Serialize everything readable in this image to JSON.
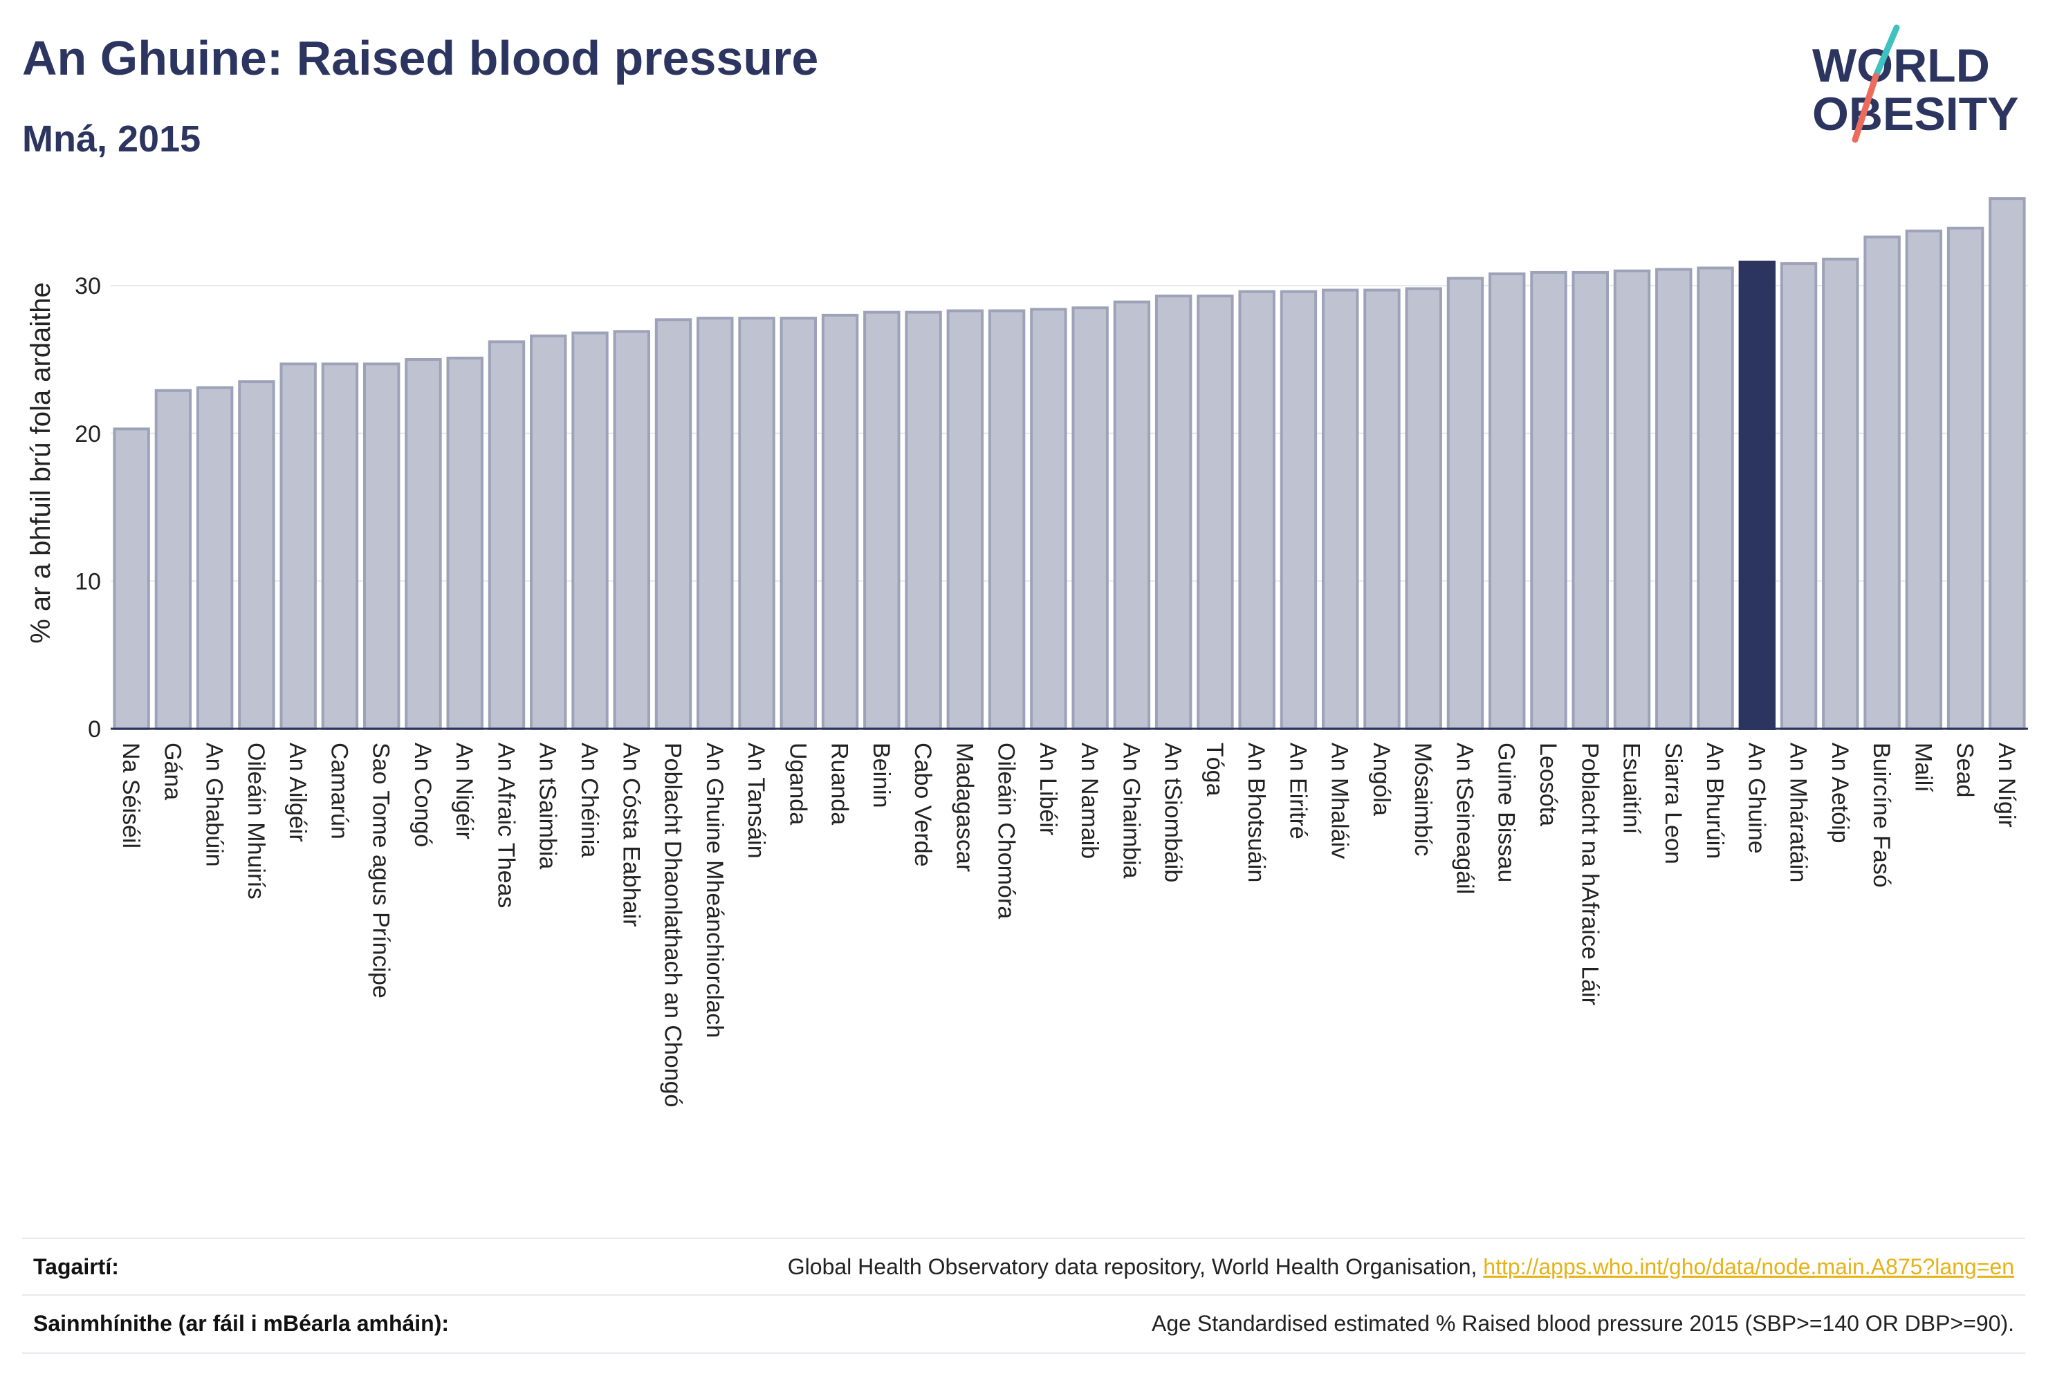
{
  "header": {
    "title": "An Ghuine: Raised blood pressure",
    "subtitle": "Mná, 2015"
  },
  "logo": {
    "line1": "WORLD",
    "line2": "OBESITY",
    "icon": "world-obesity-logo"
  },
  "colors": {
    "bar": "#bfc3d1",
    "bar_stroke": "#9da2b8",
    "highlight": "#2c3560",
    "text": "#2c3560",
    "link": "#e6b21a",
    "grid": "#e6e6ea"
  },
  "chart_data": {
    "type": "bar",
    "ylabel": "% ar a bhfuil brú fola ardaithe",
    "ylim": [
      0,
      36
    ],
    "yticks": [
      0,
      10,
      20,
      30
    ],
    "grid": true,
    "highlight_category": "An Ghuine",
    "categories": [
      "Na Séiséil",
      "Gána",
      "An Ghabúin",
      "Oileáin Mhuirís",
      "An Ailgéir",
      "Camarún",
      "Sao Tome agus Príncipe",
      "An Congó",
      "An Nigéir",
      "An Afraic Theas",
      "An tSaimbia",
      "An Chéinia",
      "An Cósta Eabhair",
      "Poblacht Dhaonlathach an Chongó",
      "An Ghuine Mheánchiorclach",
      "An Tansáin",
      "Uganda",
      "Ruanda",
      "Beinin",
      "Cabo Verde",
      "Madagascar",
      "Oileáin Chomóra",
      "An Libéir",
      "An Namaib",
      "An Ghaimbia",
      "An tSiombáib",
      "Tóga",
      "An Bhotsuáin",
      "An Eiritré",
      "An Mhaláiv",
      "Angóla",
      "Mósaimbíc",
      "An tSeineagáil",
      "Guine Bissau",
      "Leosóta",
      "Poblacht na hAfraice Láir",
      "Esuaitíní",
      "Siarra Leon",
      "An Bhurúin",
      "An Ghuine",
      "An Mháratáin",
      "An Aetóip",
      "Buircíne Fasó",
      "Mailí",
      "Sead",
      "An Nígir"
    ],
    "values": [
      20.3,
      22.9,
      23.1,
      23.5,
      24.7,
      24.7,
      24.7,
      25.0,
      25.1,
      26.2,
      26.6,
      26.8,
      26.9,
      27.7,
      27.8,
      27.8,
      27.8,
      28.0,
      28.2,
      28.2,
      28.3,
      28.3,
      28.4,
      28.5,
      28.9,
      29.3,
      29.3,
      29.6,
      29.6,
      29.7,
      29.7,
      29.8,
      30.5,
      30.8,
      30.9,
      30.9,
      31.0,
      31.1,
      31.2,
      31.6,
      31.5,
      31.8,
      33.3,
      33.7,
      33.9,
      35.9
    ]
  },
  "footer": {
    "references_label": "Tagairtí:",
    "references_text": "Global Health Observatory data repository, World Health Organisation,",
    "references_link": "http://apps.who.int/gho/data/node.main.A875?lang=en",
    "definitions_label": "Sainmhínithe (ar fáil i mBéarla amháin):",
    "definitions_text": "Age Standardised estimated % Raised blood pressure 2015 (SBP>=140 OR DBP>=90)."
  }
}
